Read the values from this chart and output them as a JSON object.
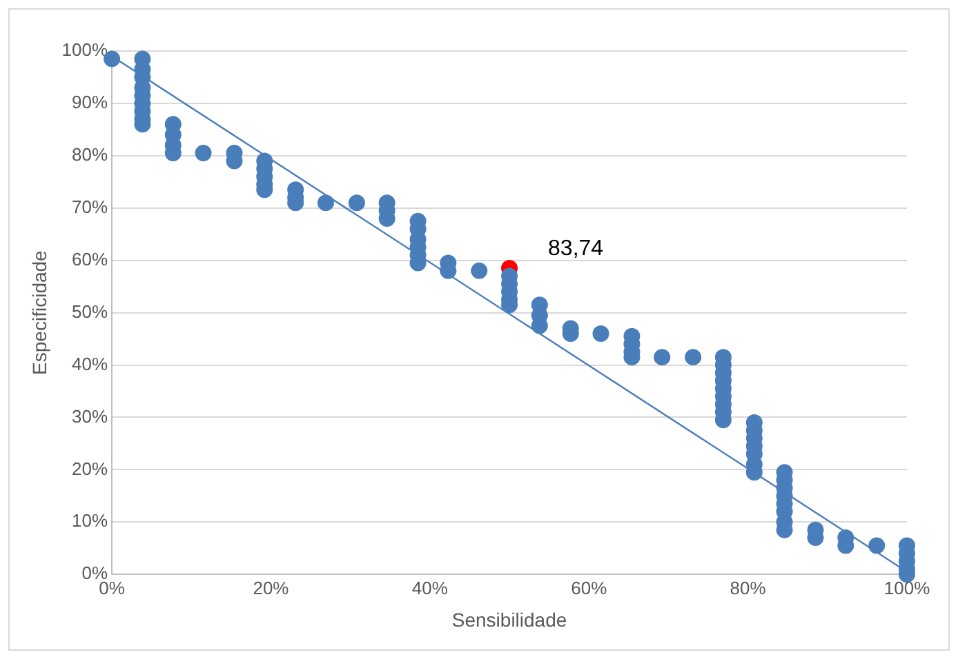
{
  "chart_data": {
    "type": "scatter",
    "xlabel": "Sensibilidade",
    "ylabel": "Especificidade",
    "xlim": [
      0,
      100
    ],
    "ylim": [
      0,
      100
    ],
    "xticks": [
      {
        "value": 0,
        "label": "0%"
      },
      {
        "value": 20,
        "label": "20%"
      },
      {
        "value": 40,
        "label": "40%"
      },
      {
        "value": 60,
        "label": "60%"
      },
      {
        "value": 80,
        "label": "80%"
      },
      {
        "value": 100,
        "label": "100%"
      }
    ],
    "yticks": [
      {
        "value": 0,
        "label": "0%"
      },
      {
        "value": 10,
        "label": "10%"
      },
      {
        "value": 20,
        "label": "20%"
      },
      {
        "value": 30,
        "label": "30%"
      },
      {
        "value": 40,
        "label": "40%"
      },
      {
        "value": 50,
        "label": "50%"
      },
      {
        "value": 60,
        "label": "60%"
      },
      {
        "value": 70,
        "label": "70%"
      },
      {
        "value": 80,
        "label": "80%"
      },
      {
        "value": 90,
        "label": "90%"
      },
      {
        "value": 100,
        "label": "100%"
      }
    ],
    "grid": "y",
    "marker": "circle",
    "legend": false,
    "series": [
      {
        "color": "#4a7ebb",
        "x": [
          0,
          3.85,
          3.85,
          3.85,
          3.85,
          3.85,
          3.85,
          3.85,
          3.85,
          3.85,
          7.7,
          7.7,
          7.7,
          7.7,
          11.5,
          15.4,
          15.4,
          19.2,
          19.2,
          19.2,
          19.2,
          19.2,
          23.1,
          23.1,
          23.1,
          26.9,
          30.8,
          34.6,
          34.6,
          34.6,
          38.5,
          38.5,
          38.5,
          38.5,
          38.5,
          38.5,
          42.3,
          42.3,
          46.2,
          50,
          50,
          50,
          50,
          50,
          53.8,
          53.8,
          53.8,
          57.7,
          57.7,
          61.5,
          65.4,
          65.4,
          65.4,
          65.4,
          69.2,
          73.1,
          76.9,
          76.9,
          76.9,
          76.9,
          76.9,
          76.9,
          76.9,
          76.9,
          76.9,
          80.8,
          80.8,
          80.8,
          80.8,
          80.8,
          80.8,
          80.8,
          84.6,
          84.6,
          84.6,
          84.6,
          84.6,
          84.6,
          84.6,
          84.6,
          88.5,
          88.5,
          92.3,
          92.3,
          96.2,
          100,
          100,
          100,
          100,
          100
        ],
        "values": [
          98.5,
          98.5,
          96.5,
          95,
          93,
          91.5,
          90,
          88.5,
          87,
          86,
          86,
          84,
          82,
          80.5,
          80.5,
          80.5,
          79,
          79,
          77.5,
          76,
          74.5,
          73.5,
          73.5,
          72,
          71,
          71,
          71,
          71,
          69.5,
          68,
          67.5,
          66,
          64,
          62.5,
          61,
          59.5,
          59.5,
          58,
          58,
          57,
          55.5,
          54,
          52.5,
          51.5,
          51.5,
          49.5,
          47.5,
          47,
          46,
          46,
          45.5,
          44,
          42.5,
          41.5,
          41.5,
          41.5,
          41.5,
          40,
          38.5,
          37,
          35.5,
          34,
          32.5,
          31,
          29.5,
          29,
          27.5,
          26,
          24.5,
          23,
          21,
          19.5,
          19.5,
          18,
          16.5,
          15,
          13.5,
          12,
          10,
          8.5,
          8.5,
          7,
          7,
          5.5,
          5.5,
          5.5,
          4,
          2.5,
          1,
          0
        ]
      },
      {
        "color": "#ff0000",
        "x": [
          50
        ],
        "values": [
          58.5
        ]
      },
      {
        "type": "line",
        "color": "#4a7ebb",
        "marker": "none",
        "x": [
          0,
          100
        ],
        "values": [
          99,
          0.5
        ]
      }
    ],
    "annotations": [
      {
        "text": "83,74",
        "x": 50,
        "y": 58.5
      }
    ]
  }
}
